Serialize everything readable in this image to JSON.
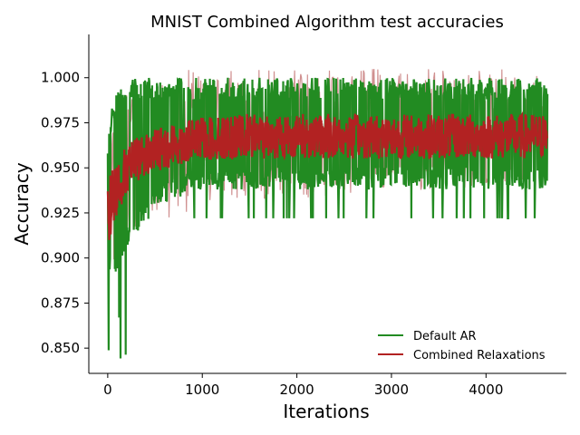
{
  "chart_data": {
    "type": "line",
    "title": "MNIST Combined Algorithm test accuracies",
    "xlabel": "Iterations",
    "ylabel": "Accuracy",
    "xlim": [
      -200,
      4850
    ],
    "ylim": [
      0.836,
      1.024
    ],
    "xticks": [
      0,
      1000,
      2000,
      3000,
      4000
    ],
    "yticks": [
      0.85,
      0.875,
      0.9,
      0.925,
      0.95,
      0.975,
      1.0
    ],
    "xtick_labels": [
      "0",
      "1000",
      "2000",
      "3000",
      "4000"
    ],
    "ytick_labels": [
      "0.850",
      "0.875",
      "0.900",
      "0.925",
      "0.950",
      "0.975",
      "1.000"
    ],
    "grid": false,
    "legend_position": "lower-right",
    "x_max": 4650,
    "series": [
      {
        "name": "Default AR",
        "color": "#228b22",
        "trend_x": [
          0,
          50,
          100,
          200,
          300,
          500,
          800,
          1000,
          1500,
          2000,
          2500,
          3000,
          3500,
          4000,
          4650
        ],
        "trend_lower": [
          0.89,
          0.89,
          0.893,
          0.905,
          0.913,
          0.925,
          0.935,
          0.938,
          0.938,
          0.938,
          0.938,
          0.938,
          0.938,
          0.938,
          0.938
        ],
        "trend_upper": [
          0.969,
          0.985,
          0.993,
          1.0,
          1.0,
          1.0,
          1.0,
          1.0,
          1.0,
          1.0,
          1.0,
          1.0,
          1.0,
          1.0,
          1.0
        ],
        "min_value": 0.844,
        "max_value": 1.0,
        "late_dips_to": 0.922
      },
      {
        "name": "Combined Relaxations",
        "color": "#b22222",
        "band_color": "#d09090",
        "trend_x": [
          0,
          50,
          100,
          200,
          300,
          500,
          800,
          1000,
          1500,
          2000,
          2500,
          3000,
          3500,
          4000,
          4650
        ],
        "trend_lower": [
          0.905,
          0.915,
          0.925,
          0.935,
          0.942,
          0.948,
          0.952,
          0.954,
          0.955,
          0.955,
          0.955,
          0.955,
          0.955,
          0.955,
          0.955
        ],
        "trend_upper": [
          0.944,
          0.95,
          0.955,
          0.962,
          0.967,
          0.972,
          0.976,
          0.978,
          0.98,
          0.98,
          0.98,
          0.98,
          0.98,
          0.98,
          0.98
        ],
        "band_lower": [
          0.88,
          0.89,
          0.9,
          0.91,
          0.915,
          0.92,
          0.925,
          0.928,
          0.93,
          0.932,
          0.935,
          0.937,
          0.938,
          0.94,
          0.942
        ],
        "band_upper": [
          0.95,
          0.975,
          0.99,
          1.0,
          1.0,
          1.0,
          1.005,
          1.005,
          1.005,
          1.005,
          1.005,
          1.005,
          1.005,
          1.005,
          1.005
        ]
      }
    ]
  }
}
